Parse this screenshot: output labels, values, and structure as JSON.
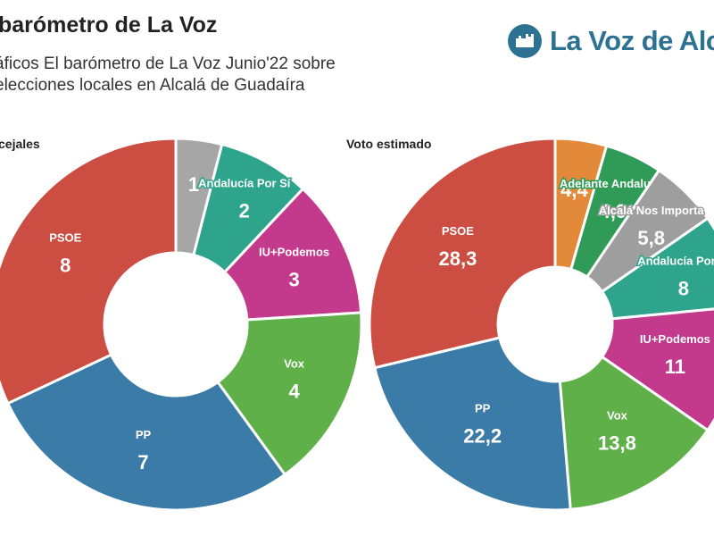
{
  "header": {
    "title": "barómetro de La Voz",
    "subtitle": "áficos El barómetro de La Voz Junio'22 sobre elecciones locales en Alcalá de Guadaíra"
  },
  "logo": {
    "text": "La Voz de Alcal",
    "icon": "fortress-icon",
    "color": "#2d7293"
  },
  "chart_data": [
    {
      "type": "pie",
      "title": "cejales",
      "slices": [
        {
          "label": "",
          "value": 1,
          "value_text": "1",
          "color": "#a6a6a6"
        },
        {
          "label": "Andalucía Por Sí",
          "value": 2,
          "value_text": "2",
          "color": "#2fa48c"
        },
        {
          "label": "IU+Podemos",
          "value": 3,
          "value_text": "3",
          "color": "#c33a8c"
        },
        {
          "label": "Vox",
          "value": 4,
          "value_text": "4",
          "color": "#5fb048"
        },
        {
          "label": "PP",
          "value": 7,
          "value_text": "7",
          "color": "#3b7ba7"
        },
        {
          "label": "PSOE",
          "value": 8,
          "value_text": "8",
          "color": "#cc4d42"
        }
      ]
    },
    {
      "type": "pie",
      "title": "Voto estimado",
      "slices": [
        {
          "label": "",
          "value": 4.4,
          "value_text": "4,4",
          "color": "#e38a3a"
        },
        {
          "label": "Adelante Andalucía",
          "value": 4.9,
          "value_text": "4,9",
          "color": "#2f9b56"
        },
        {
          "label": "Alcalá Nos Importa",
          "value": 5.8,
          "value_text": "5,8",
          "color": "#9e9e9e"
        },
        {
          "label": "Andalucía Por Sí",
          "value": 8,
          "value_text": "8",
          "color": "#2fa48c"
        },
        {
          "label": "IU+Podemos",
          "value": 11,
          "value_text": "11",
          "color": "#c33a8c"
        },
        {
          "label": "Vox",
          "value": 13.8,
          "value_text": "13,8",
          "color": "#5fb048"
        },
        {
          "label": "PP",
          "value": 22.2,
          "value_text": "22,2",
          "color": "#3b7ba7"
        },
        {
          "label": "PSOE",
          "value": 28.3,
          "value_text": "28,3",
          "color": "#cc4d42"
        }
      ]
    }
  ]
}
